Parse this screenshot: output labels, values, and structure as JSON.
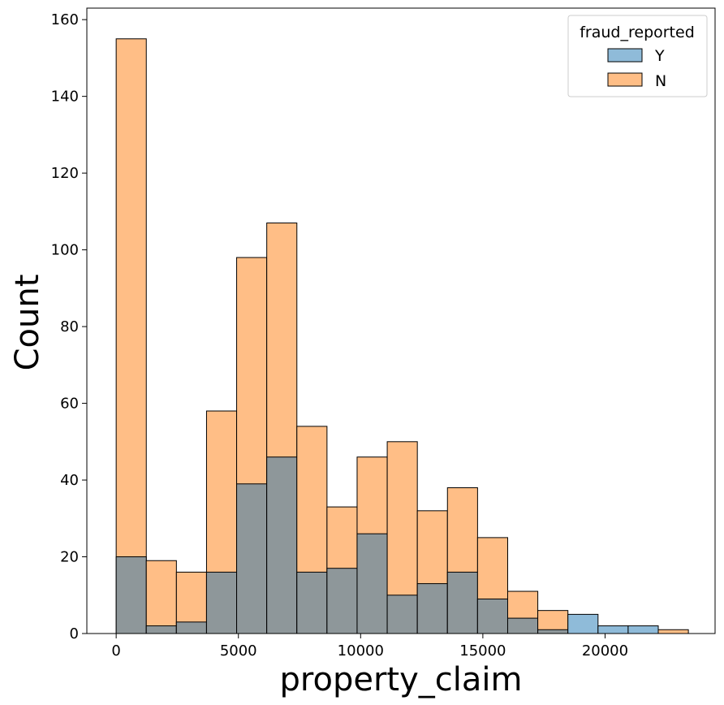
{
  "chart_data": {
    "type": "bar",
    "subtype": "overlaid-histogram",
    "title": "",
    "xlabel": "property_claim",
    "ylabel": "Count",
    "bin_width": 1232,
    "bin_start": 0,
    "xlim": [
      -1200,
      24500
    ],
    "ylim": [
      0,
      163
    ],
    "x_ticks": [
      0,
      5000,
      10000,
      15000,
      20000
    ],
    "x_tick_labels": [
      "0",
      "5000",
      "10000",
      "15000",
      "20000"
    ],
    "y_ticks": [
      0,
      20,
      40,
      60,
      80,
      100,
      120,
      140,
      160
    ],
    "y_tick_labels": [
      "0",
      "20",
      "40",
      "60",
      "80",
      "100",
      "120",
      "140",
      "160"
    ],
    "grid": false,
    "legend": {
      "title": "fraud_reported",
      "placement": "top-right",
      "entries": [
        {
          "label": "Y",
          "color": "#1f77b4"
        },
        {
          "label": "N",
          "color": "#ff7f0e"
        }
      ]
    },
    "series": [
      {
        "name": "N",
        "color": "#ffbe86",
        "values": [
          155,
          19,
          16,
          58,
          98,
          107,
          54,
          33,
          46,
          50,
          32,
          38,
          25,
          11,
          6,
          0,
          0,
          0,
          1
        ]
      },
      {
        "name": "Y",
        "color": "#8fbbd9",
        "values": [
          20,
          2,
          3,
          16,
          39,
          46,
          16,
          17,
          26,
          10,
          13,
          16,
          9,
          4,
          1,
          5,
          2,
          2,
          0
        ]
      }
    ],
    "overlap_color": "#8e979a",
    "edge_color": "#000000"
  }
}
